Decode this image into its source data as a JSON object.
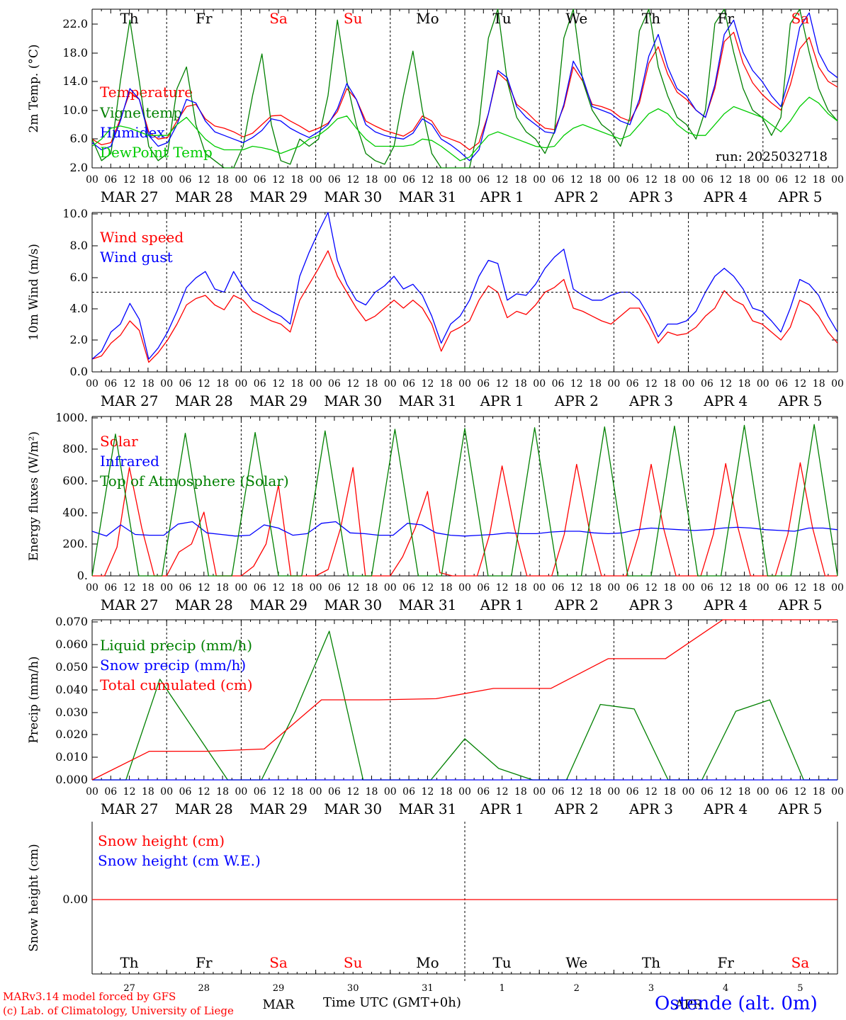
{
  "chart_data": [
    {
      "type": "line",
      "ylabel": "2m Temp. (°C)",
      "yticks": [
        "22.0",
        "18.0",
        "14.0",
        "10.0",
        "6.0",
        "2.0"
      ],
      "ylim": [
        2,
        24
      ],
      "run_label": "run: 2025032718",
      "series": [
        {
          "name": "Temperature",
          "color": "#ff0000",
          "values": [
            6.0,
            5.2,
            5.5,
            8.8,
            12.5,
            11.5,
            7.0,
            6.0,
            6.2,
            8.5,
            10.5,
            10.8,
            8.8,
            7.8,
            7.5,
            7.0,
            6.3,
            6.8,
            8.0,
            9.2,
            9.3,
            8.5,
            7.8,
            7.0,
            7.5,
            8.2,
            9.8,
            13.0,
            11.5,
            8.5,
            7.8,
            7.2,
            6.8,
            6.4,
            7.2,
            9.2,
            8.5,
            6.5,
            6.0,
            5.5,
            4.5,
            5.5,
            9.5,
            15.2,
            14.0,
            10.8,
            9.8,
            8.5,
            7.5,
            7.3,
            10.5,
            16.0,
            14.0,
            10.8,
            10.5,
            10.0,
            9.0,
            8.5,
            11.0,
            16.5,
            18.8,
            15.0,
            12.5,
            11.5,
            10.0,
            9.0,
            13.0,
            19.5,
            20.8,
            16.5,
            13.8,
            12.2,
            11.0,
            10.0,
            13.5,
            18.5,
            20.1,
            16.0,
            14.0,
            13.2
          ]
        },
        {
          "name": "Vigne temp",
          "color": "#008000",
          "values": [
            6.0,
            3.0,
            4.0,
            14.0,
            22.5,
            14.0,
            5.0,
            3.0,
            4.0,
            13.0,
            16.0,
            8.0,
            4.0,
            3.0,
            2.0,
            2.0,
            5.0,
            12.0,
            17.8,
            8.0,
            3.0,
            2.5,
            6.0,
            5.0,
            6.0,
            12.0,
            22.5,
            14.0,
            8.0,
            4.0,
            3.0,
            2.5,
            5.0,
            12.0,
            18.2,
            10.0,
            4.0,
            2.0,
            2.0,
            2.0,
            2.0,
            8.0,
            20.0,
            24.0,
            14.0,
            9.0,
            7.0,
            6.0,
            4.0,
            7.0,
            20.0,
            24.0,
            14.0,
            10.0,
            8.0,
            7.0,
            5.0,
            9.0,
            21.0,
            24.0,
            16.0,
            12.0,
            9.0,
            8.0,
            6.0,
            10.0,
            22.0,
            24.0,
            18.0,
            13.0,
            10.0,
            9.0,
            6.5,
            9.0,
            22.0,
            24.0,
            18.0,
            13.0,
            10.0,
            8.5
          ]
        },
        {
          "name": "Humidex",
          "color": "#0000ff",
          "values": [
            5.5,
            4.5,
            5.0,
            8.5,
            13.0,
            11.5,
            6.5,
            5.0,
            5.5,
            8.0,
            11.5,
            11.0,
            8.5,
            7.0,
            6.5,
            6.0,
            5.5,
            6.2,
            7.2,
            8.8,
            8.5,
            7.5,
            6.8,
            6.2,
            7.0,
            8.0,
            10.2,
            13.7,
            11.5,
            8.0,
            7.0,
            6.5,
            6.2,
            6.0,
            6.8,
            8.8,
            8.0,
            6.0,
            5.2,
            4.2,
            3.0,
            4.5,
            9.5,
            15.5,
            14.5,
            10.5,
            9.0,
            8.0,
            7.0,
            6.8,
            10.8,
            16.8,
            14.5,
            10.5,
            10.0,
            9.5,
            8.5,
            8.0,
            11.5,
            17.5,
            20.5,
            16.0,
            13.0,
            12.0,
            10.0,
            9.0,
            13.5,
            20.5,
            22.5,
            18.0,
            15.5,
            14.0,
            12.0,
            10.5,
            15.0,
            21.5,
            23.5,
            18.0,
            15.5,
            14.5
          ]
        },
        {
          "name": "DewPoint Temp",
          "color": "#00cc00",
          "values": [
            5.0,
            6.0,
            7.5,
            7.8,
            7.5,
            7.0,
            6.5,
            6.5,
            6.5,
            8.0,
            9.0,
            7.5,
            6.0,
            5.0,
            4.5,
            4.5,
            4.5,
            5.0,
            4.8,
            4.5,
            4.0,
            4.5,
            5.0,
            6.0,
            6.5,
            7.5,
            8.8,
            9.2,
            7.5,
            6.0,
            5.0,
            5.0,
            5.0,
            5.0,
            5.2,
            6.0,
            5.8,
            5.0,
            4.0,
            3.0,
            3.5,
            5.0,
            6.5,
            7.0,
            6.5,
            6.0,
            5.5,
            5.0,
            4.8,
            5.0,
            6.5,
            7.5,
            8.0,
            7.5,
            7.0,
            6.5,
            6.0,
            6.5,
            8.0,
            9.5,
            10.2,
            9.5,
            8.0,
            7.0,
            6.5,
            6.5,
            8.0,
            9.5,
            10.5,
            10.0,
            9.5,
            9.0,
            8.0,
            7.0,
            8.5,
            10.5,
            11.8,
            11.0,
            9.5,
            8.5
          ]
        }
      ]
    },
    {
      "type": "line",
      "ylabel": "10m Wind (m/s)",
      "yticks": [
        "10.0",
        "8.0",
        "6.0",
        "4.0",
        "2.0",
        "0.0"
      ],
      "ylim": [
        0,
        10
      ],
      "reference_line": 5.0,
      "series": [
        {
          "name": "Wind speed",
          "color": "#ff0000",
          "values": [
            0.8,
            1.0,
            1.8,
            2.3,
            3.2,
            2.6,
            0.6,
            1.2,
            2.0,
            3.0,
            4.2,
            4.6,
            4.8,
            4.2,
            3.9,
            4.8,
            4.5,
            3.8,
            3.5,
            3.2,
            3.0,
            2.5,
            4.5,
            5.5,
            6.5,
            7.6,
            6.0,
            5.0,
            4.0,
            3.2,
            3.5,
            4.0,
            4.5,
            4.0,
            4.5,
            4.0,
            3.0,
            1.3,
            2.5,
            2.8,
            3.2,
            4.5,
            5.4,
            5.0,
            3.4,
            3.8,
            3.6,
            4.2,
            5.0,
            5.3,
            5.8,
            4.0,
            3.8,
            3.5,
            3.2,
            3.0,
            3.5,
            4.0,
            4.0,
            3.0,
            1.8,
            2.5,
            2.3,
            2.4,
            2.8,
            3.5,
            4.0,
            5.1,
            4.5,
            4.2,
            3.2,
            3.0,
            2.5,
            2.0,
            2.8,
            4.5,
            4.2,
            3.5,
            2.5,
            1.8
          ]
        },
        {
          "name": "Wind gust",
          "color": "#0000ff",
          "values": [
            0.8,
            1.3,
            2.5,
            3.0,
            4.3,
            3.3,
            0.8,
            1.5,
            2.5,
            3.8,
            5.3,
            5.9,
            6.3,
            5.2,
            5.0,
            6.3,
            5.3,
            4.5,
            4.2,
            3.8,
            3.5,
            3.0,
            6.0,
            7.5,
            8.8,
            10.0,
            7.0,
            5.5,
            4.5,
            4.2,
            5.0,
            5.4,
            6.0,
            5.2,
            5.5,
            4.8,
            3.5,
            1.8,
            3.0,
            3.5,
            4.5,
            6.0,
            7.0,
            6.8,
            4.5,
            4.9,
            4.8,
            5.5,
            6.5,
            7.2,
            7.7,
            5.2,
            4.8,
            4.5,
            4.5,
            4.8,
            5.0,
            5.0,
            4.5,
            3.5,
            2.2,
            3.0,
            3.0,
            3.2,
            3.8,
            5.0,
            6.0,
            6.5,
            6.0,
            5.2,
            4.0,
            3.8,
            3.2,
            2.5,
            4.0,
            5.8,
            5.5,
            4.8,
            3.5,
            2.5
          ]
        }
      ]
    },
    {
      "type": "line",
      "ylabel": "Energy fluxes (W/m²)",
      "yticks": [
        "1000.",
        "800.",
        "600.",
        "400.",
        "200.",
        "0."
      ],
      "ylim": [
        0,
        1000
      ],
      "series": [
        {
          "name": "Solar",
          "color": "#ff0000",
          "values": [
            0,
            0,
            180,
            680,
            300,
            0,
            0,
            150,
            200,
            400,
            0,
            0,
            0,
            60,
            200,
            570,
            0,
            0,
            0,
            40,
            300,
            680,
            0,
            0,
            0,
            120,
            300,
            530,
            20,
            0,
            0,
            0,
            260,
            690,
            300,
            0,
            0,
            0,
            260,
            700,
            300,
            0,
            0,
            0,
            260,
            700,
            300,
            0,
            0,
            0,
            260,
            705,
            300,
            0,
            0,
            0,
            260,
            710,
            300,
            0,
            0
          ]
        },
        {
          "name": "Infrared",
          "color": "#0000ff",
          "values": [
            280,
            250,
            320,
            260,
            255,
            255,
            325,
            340,
            270,
            260,
            250,
            255,
            320,
            300,
            255,
            265,
            330,
            340,
            270,
            265,
            255,
            255,
            330,
            320,
            270,
            255,
            250,
            255,
            260,
            270,
            265,
            265,
            275,
            280,
            280,
            270,
            265,
            270,
            290,
            300,
            295,
            290,
            285,
            290,
            300,
            305,
            300,
            290,
            285,
            280,
            300,
            300,
            290
          ]
        },
        {
          "name": "Top of Atmosphere (Solar)",
          "color": "#008000",
          "values": [
            0,
            890,
            0,
            0,
            895,
            0,
            0,
            900,
            0,
            0,
            910,
            0,
            0,
            920,
            0,
            0,
            925,
            0,
            0,
            930,
            0,
            0,
            935,
            0,
            0,
            940,
            0,
            0,
            945,
            0,
            0,
            950,
            0
          ]
        }
      ]
    },
    {
      "type": "line",
      "ylabel": "Precip (mm/h)",
      "yticks": [
        "0.070",
        "0.060",
        "0.050",
        "0.040",
        "0.030",
        "0.020",
        "0.010",
        "0.000"
      ],
      "ylim": [
        0,
        0.07
      ],
      "series": [
        {
          "name": "Liquid precip (mm/h)",
          "color": "#008000",
          "values": [
            0,
            0,
            0.044,
            0.022,
            0,
            0,
            0.03,
            0.065,
            0,
            0,
            0,
            0.018,
            0.005,
            0,
            0,
            0.033,
            0.031,
            0,
            0,
            0.03,
            0.035,
            0,
            0
          ]
        },
        {
          "name": "Snow precip (mm/h)",
          "color": "#0000ff",
          "values": [
            0,
            0,
            0,
            0,
            0,
            0,
            0,
            0,
            0,
            0,
            0,
            0
          ]
        },
        {
          "name": "Total cumulated (cm)",
          "color": "#ff0000",
          "values": [
            0,
            0.0125,
            0.0125,
            0.0135,
            0.035,
            0.035,
            0.0355,
            0.04,
            0.04,
            0.053,
            0.053,
            0.07,
            0.07,
            0.07
          ]
        }
      ]
    },
    {
      "type": "line",
      "ylabel": "Snow height (cm)",
      "yticks": [
        "0.00"
      ],
      "series": [
        {
          "name": "Snow height (cm)",
          "color": "#ff0000",
          "values": [
            0,
            0
          ]
        },
        {
          "name": "Snow height (cm W.E.)",
          "color": "#0000ff",
          "values": [
            0,
            0
          ]
        }
      ]
    }
  ],
  "axis": {
    "hour_ticks": [
      "00",
      "06",
      "12",
      "18"
    ],
    "last_tick": "00",
    "dates": [
      "MAR 27",
      "MAR 28",
      "MAR 29",
      "MAR 30",
      "MAR 31",
      "APR  1",
      "APR  2",
      "APR  3",
      "APR  4",
      "APR  5"
    ],
    "weekdays": [
      "Th",
      "Fr",
      "Sa",
      "Su",
      "Mo",
      "Tu",
      "We",
      "Th",
      "Fr",
      "Sa"
    ],
    "weekday_colors": [
      "#000000",
      "#000000",
      "#ff0000",
      "#ff0000",
      "#000000",
      "#000000",
      "#000000",
      "#000000",
      "#000000",
      "#ff0000"
    ],
    "bottom_day_numbers": [
      "27",
      "28",
      "29",
      "30",
      "31",
      "1",
      "2",
      "3",
      "4",
      "5"
    ],
    "bottom_months": [
      "MAR",
      "APR"
    ],
    "time_label": "Time UTC (GMT+0h)"
  },
  "footer": {
    "credit_line1": "MARv3.14 model forced by GFS",
    "credit_line2": "(c) Lab. of Climatology, University of Liege",
    "station": "Ostende (alt. 0m)"
  }
}
